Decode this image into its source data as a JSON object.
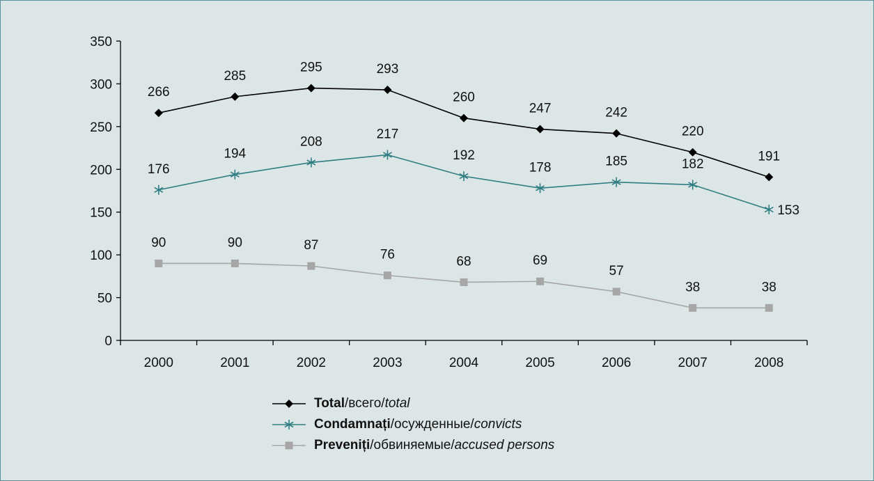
{
  "chart_data": {
    "type": "line",
    "categories": [
      "2000",
      "2001",
      "2002",
      "2003",
      "2004",
      "2005",
      "2006",
      "2007",
      "2008"
    ],
    "ylim": [
      0,
      350
    ],
    "yticks": [
      0,
      50,
      100,
      150,
      200,
      250,
      300,
      350
    ],
    "grid": false,
    "legend_position": "bottom",
    "series": [
      {
        "name": "Total/всего/total",
        "name_parts": [
          "Total",
          "/всего/",
          "total"
        ],
        "values": [
          266,
          285,
          295,
          293,
          260,
          247,
          242,
          220,
          191
        ],
        "color": "#000000",
        "marker": "diamond"
      },
      {
        "name": "Condamnați/осужденные/convicts",
        "name_parts": [
          "Condamnați",
          "/осужденные/",
          "convicts"
        ],
        "values": [
          176,
          194,
          208,
          217,
          192,
          178,
          185,
          182,
          153
        ],
        "color": "#2e7d82",
        "marker": "asterisk"
      },
      {
        "name": "Preveniți/обвиняемые/accused persons",
        "name_parts": [
          "Preveniți",
          "/обвиняемые/",
          "accused persons"
        ],
        "values": [
          90,
          90,
          87,
          76,
          68,
          69,
          57,
          38,
          38
        ],
        "color": "#a6a6a6",
        "marker": "square"
      }
    ]
  }
}
